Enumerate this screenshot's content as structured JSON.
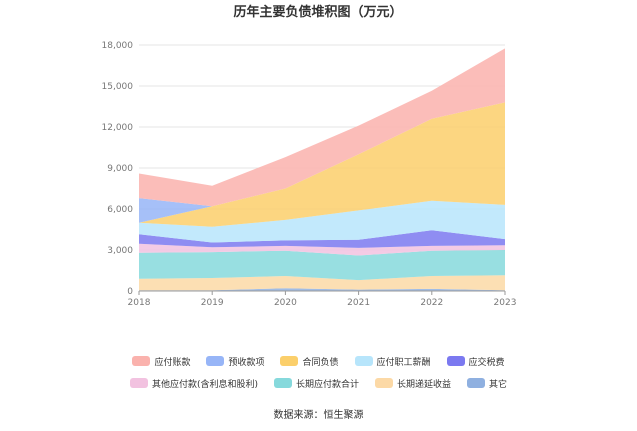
{
  "chart_data": {
    "type": "area",
    "stacked": true,
    "title": "历年主要负债堆积图（万元）",
    "x": [
      "2018",
      "2019",
      "2020",
      "2021",
      "2022",
      "2023"
    ],
    "y_ticks": [
      "0",
      "3,000",
      "6,000",
      "9,000",
      "12,000",
      "15,000",
      "18,000"
    ],
    "ylim": [
      0,
      18000
    ],
    "series": [
      {
        "name": "其它",
        "color": "#8fb0e0",
        "values": [
          50,
          60,
          200,
          100,
          150,
          60
        ]
      },
      {
        "name": "长期递延收益",
        "color": "#fcd9a6",
        "values": [
          850,
          890,
          900,
          700,
          950,
          1090
        ]
      },
      {
        "name": "长期应付款合计",
        "color": "#86d9dc",
        "values": [
          1900,
          1900,
          1850,
          1800,
          1850,
          1850
        ]
      },
      {
        "name": "其他应付款(含利息和股利)",
        "color": "#f2c2e0",
        "values": [
          650,
          350,
          350,
          550,
          350,
          350
        ]
      },
      {
        "name": "应交税费",
        "color": "#7b79f0",
        "values": [
          700,
          350,
          400,
          600,
          1150,
          450
        ]
      },
      {
        "name": "应付职工薪酬",
        "color": "#b7e5fb",
        "values": [
          850,
          1150,
          1500,
          2150,
          2150,
          2500
        ]
      },
      {
        "name": "合同负债",
        "color": "#fbcf6b",
        "values": [
          0,
          1500,
          2300,
          4100,
          6000,
          7500
        ]
      },
      {
        "name": "预收款项",
        "color": "#97b5f7",
        "values": [
          1800,
          0,
          0,
          0,
          0,
          0
        ]
      },
      {
        "name": "应付账款",
        "color": "#fab2ad",
        "values": [
          1800,
          1500,
          2300,
          2100,
          2050,
          3950
        ]
      }
    ],
    "legend_order": [
      "应付账款",
      "预收款项",
      "合同负债",
      "应付职工薪酬",
      "应交税费",
      "其他应付款(含利息和股利)",
      "长期应付款合计",
      "长期递延收益",
      "其它"
    ],
    "legend_placement": "bottom"
  },
  "source_text": "数据来源：恒生聚源"
}
